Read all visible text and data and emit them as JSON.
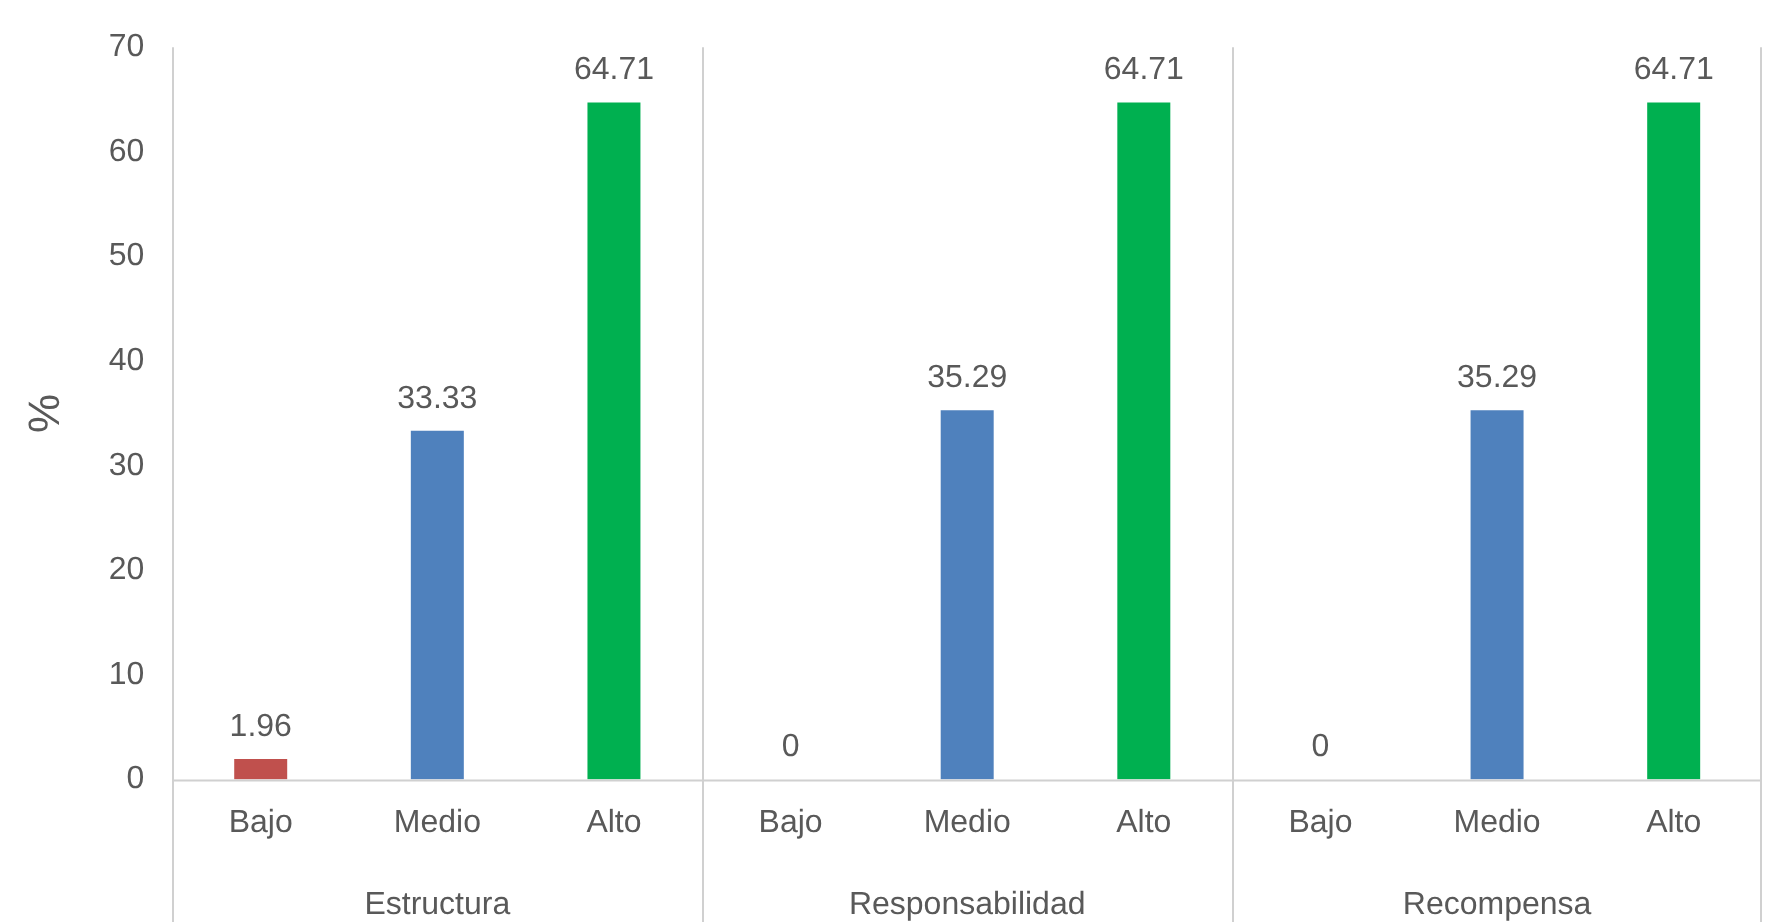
{
  "chart_data": {
    "type": "bar",
    "ylabel": "%",
    "categories": [
      "Bajo",
      "Medio",
      "Alto",
      "Bajo",
      "Medio",
      "Alto",
      "Bajo",
      "Medio",
      "Alto"
    ],
    "values": [
      1.96,
      33.33,
      64.71,
      0,
      35.29,
      64.71,
      0,
      35.29,
      64.71
    ],
    "colors": [
      "#c0504d",
      "#4f81bd",
      "#00b050",
      "#c0504d",
      "#4f81bd",
      "#00b050",
      "#c0504d",
      "#4f81bd",
      "#00b050"
    ],
    "ylim": [
      0,
      70
    ],
    "yticks": [
      0,
      10,
      20,
      30,
      40,
      50,
      60,
      70
    ],
    "data_labels": true,
    "legend": false,
    "grid": false,
    "annotations": [
      "Estructura",
      "Responsabilidad",
      "Recompensa"
    ]
  }
}
